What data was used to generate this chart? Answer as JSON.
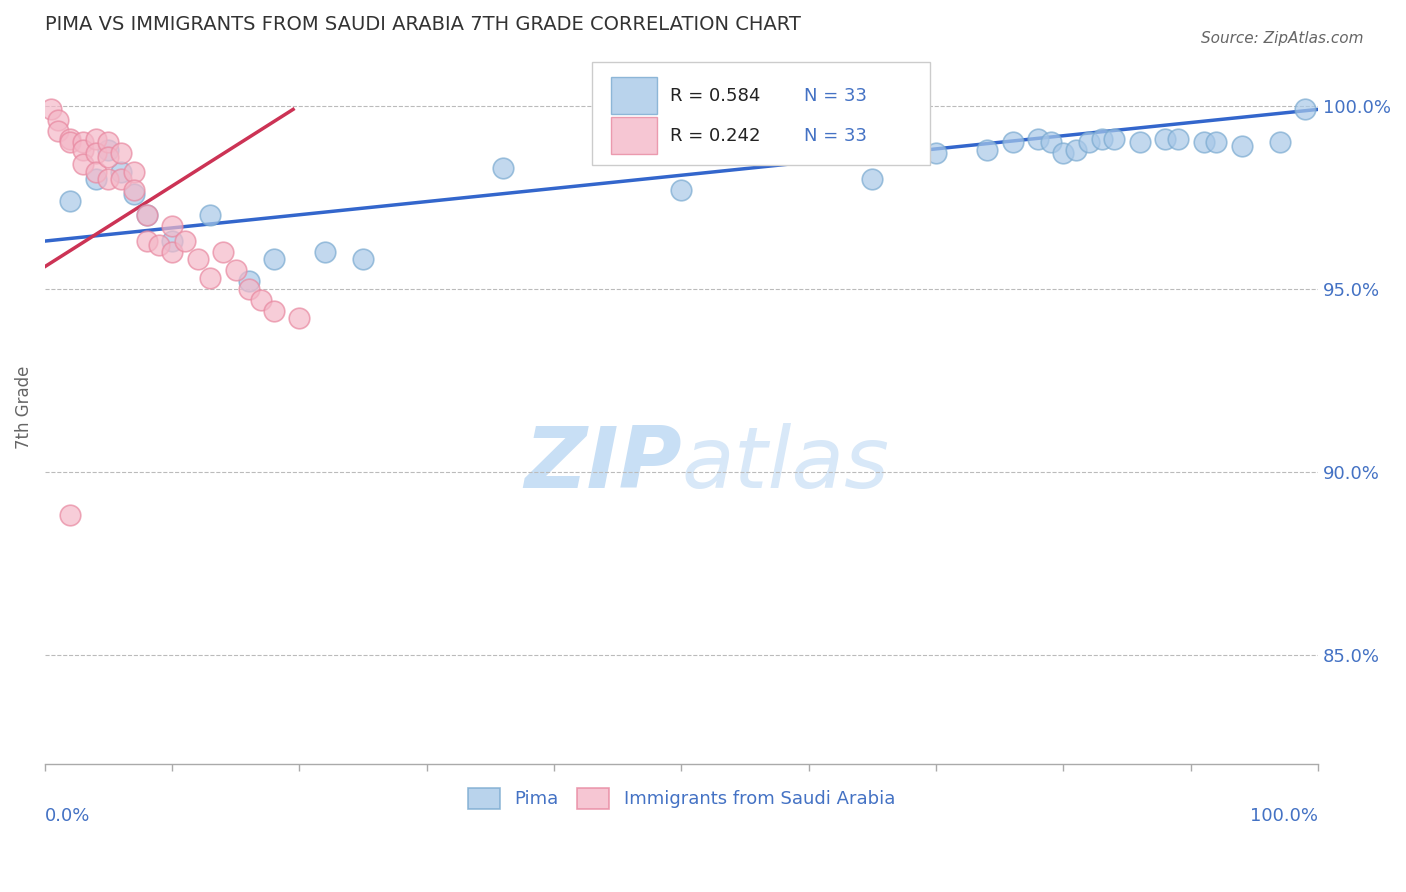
{
  "title": "PIMA VS IMMIGRANTS FROM SAUDI ARABIA 7TH GRADE CORRELATION CHART",
  "source": "Source: ZipAtlas.com",
  "ylabel": "7th Grade",
  "ytick_labels": [
    "100.0%",
    "95.0%",
    "90.0%",
    "85.0%"
  ],
  "ytick_values": [
    1.0,
    0.95,
    0.9,
    0.85
  ],
  "xlim": [
    0.0,
    1.0
  ],
  "ylim": [
    0.82,
    1.015
  ],
  "legend_R_blue": "R = 0.584",
  "legend_N_blue": "N = 33",
  "legend_R_pink": "R = 0.242",
  "legend_N_pink": "N = 33",
  "blue_color": "#a8c8e8",
  "blue_edge_color": "#7aaad0",
  "pink_color": "#f4b8c8",
  "pink_edge_color": "#e888a0",
  "trendline_blue_color": "#3366cc",
  "trendline_pink_color": "#cc3355",
  "title_color": "#333333",
  "axis_label_color": "#4472c4",
  "watermark_text_color": "#ddeeff",
  "blue_points_x": [
    0.02,
    0.04,
    0.05,
    0.06,
    0.07,
    0.08,
    0.1,
    0.13,
    0.16,
    0.18,
    0.22,
    0.25,
    0.36,
    0.5,
    0.65,
    0.7,
    0.74,
    0.76,
    0.78,
    0.79,
    0.8,
    0.81,
    0.82,
    0.83,
    0.84,
    0.86,
    0.88,
    0.89,
    0.91,
    0.92,
    0.94,
    0.97,
    0.99
  ],
  "blue_points_y": [
    0.974,
    0.98,
    0.988,
    0.982,
    0.976,
    0.97,
    0.963,
    0.97,
    0.952,
    0.958,
    0.96,
    0.958,
    0.983,
    0.977,
    0.98,
    0.987,
    0.988,
    0.99,
    0.991,
    0.99,
    0.987,
    0.988,
    0.99,
    0.991,
    0.991,
    0.99,
    0.991,
    0.991,
    0.99,
    0.99,
    0.989,
    0.99,
    0.999
  ],
  "pink_points_x": [
    0.005,
    0.01,
    0.01,
    0.02,
    0.02,
    0.03,
    0.03,
    0.03,
    0.04,
    0.04,
    0.04,
    0.05,
    0.05,
    0.05,
    0.06,
    0.06,
    0.07,
    0.07,
    0.08,
    0.08,
    0.09,
    0.1,
    0.1,
    0.11,
    0.12,
    0.13,
    0.14,
    0.15,
    0.16,
    0.17,
    0.18,
    0.2,
    0.02
  ],
  "pink_points_y": [
    0.999,
    0.996,
    0.993,
    0.991,
    0.99,
    0.99,
    0.988,
    0.984,
    0.991,
    0.987,
    0.982,
    0.99,
    0.986,
    0.98,
    0.987,
    0.98,
    0.982,
    0.977,
    0.97,
    0.963,
    0.962,
    0.967,
    0.96,
    0.963,
    0.958,
    0.953,
    0.96,
    0.955,
    0.95,
    0.947,
    0.944,
    0.942,
    0.888
  ],
  "blue_trend_x": [
    0.0,
    1.0
  ],
  "blue_trend_y": [
    0.963,
    0.999
  ],
  "pink_trend_x": [
    0.0,
    0.195
  ],
  "pink_trend_y": [
    0.956,
    0.999
  ]
}
